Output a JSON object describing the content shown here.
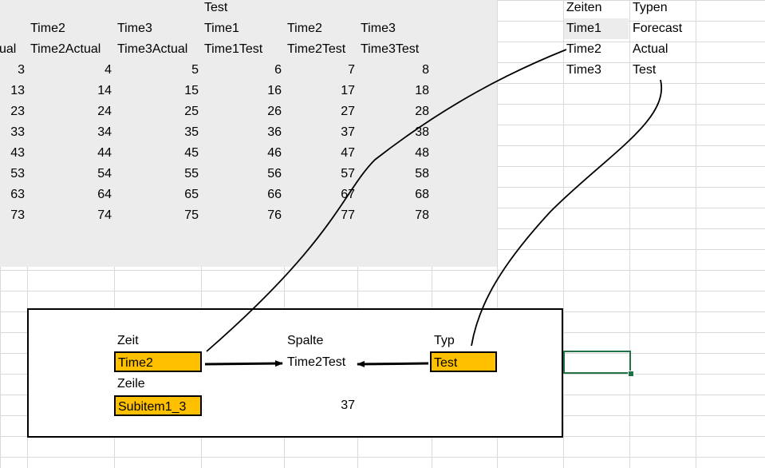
{
  "sheet": {
    "header_rows": {
      "row0": {
        "c5": "Test"
      },
      "row1": {
        "c3": "Time2",
        "c4": "Time3",
        "c5": "Time1",
        "c6": "Time2",
        "c7": "Time3"
      },
      "row2": {
        "c2": "ual",
        "c3": "Time2Actual",
        "c4": "Time3Actual",
        "c5": "Time1Test",
        "c6": "Time2Test",
        "c7": "Time3Test"
      }
    },
    "data_rows": [
      [
        "3",
        "4",
        "5",
        "6",
        "7",
        "8"
      ],
      [
        "13",
        "14",
        "15",
        "16",
        "17",
        "18"
      ],
      [
        "23",
        "24",
        "25",
        "26",
        "27",
        "28"
      ],
      [
        "33",
        "34",
        "35",
        "36",
        "37",
        "38"
      ],
      [
        "43",
        "44",
        "45",
        "46",
        "47",
        "48"
      ],
      [
        "53",
        "54",
        "55",
        "56",
        "57",
        "58"
      ],
      [
        "63",
        "64",
        "65",
        "66",
        "67",
        "68"
      ],
      [
        "73",
        "74",
        "75",
        "76",
        "77",
        "78"
      ]
    ]
  },
  "lookup": {
    "zeiten_header": "Zeiten",
    "typen_header": "Typen",
    "zeiten": [
      "Time1",
      "Time2",
      "Time3"
    ],
    "typen": [
      "Forecast",
      "Actual",
      "Test"
    ]
  },
  "panel": {
    "zeit_label": "Zeit",
    "zeit_value": "Time2",
    "zeile_label": "Zeile",
    "zeile_value": "Subitem1_3",
    "spalte_label": "Spalte",
    "spalte_value": "Time2Test",
    "typ_label": "Typ",
    "typ_value": "Test",
    "result": "37"
  },
  "colors": {
    "input_fill": "#ffc000",
    "selection_border": "#217346",
    "shaded_area": "#ececec"
  }
}
